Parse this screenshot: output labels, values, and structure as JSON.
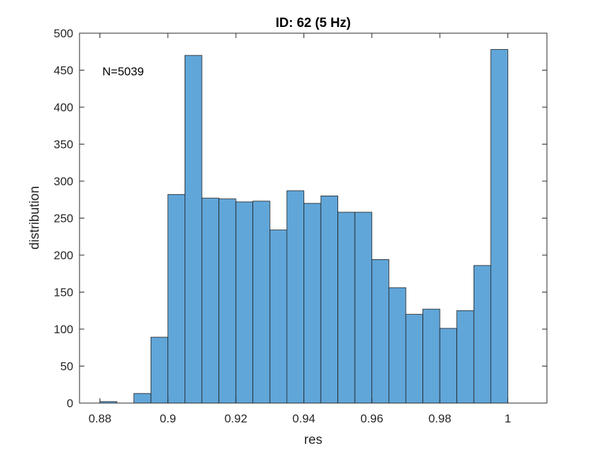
{
  "chart_data": {
    "type": "bar",
    "title": "ID: 62 (5 Hz)",
    "xlabel": "res",
    "ylabel": "distribution",
    "annotation": "N=5039",
    "xlim": [
      0.874,
      1.0115
    ],
    "ylim": [
      0,
      500
    ],
    "xticks": [
      0.88,
      0.9,
      0.92,
      0.94,
      0.96,
      0.98,
      1
    ],
    "xtick_labels": [
      "0.88",
      "0.9",
      "0.92",
      "0.94",
      "0.96",
      "0.98",
      "1"
    ],
    "yticks": [
      0,
      50,
      100,
      150,
      200,
      250,
      300,
      350,
      400,
      450,
      500
    ],
    "ytick_labels": [
      "0",
      "50",
      "100",
      "150",
      "200",
      "250",
      "300",
      "350",
      "400",
      "450",
      "500"
    ],
    "bin_width": 0.005,
    "bins": [
      {
        "x0": 0.88,
        "x1": 0.885,
        "value": 2
      },
      {
        "x0": 0.885,
        "x1": 0.89,
        "value": 0
      },
      {
        "x0": 0.89,
        "x1": 0.895,
        "value": 13
      },
      {
        "x0": 0.895,
        "x1": 0.9,
        "value": 89
      },
      {
        "x0": 0.9,
        "x1": 0.905,
        "value": 282
      },
      {
        "x0": 0.905,
        "x1": 0.91,
        "value": 470
      },
      {
        "x0": 0.91,
        "x1": 0.915,
        "value": 277
      },
      {
        "x0": 0.915,
        "x1": 0.92,
        "value": 276
      },
      {
        "x0": 0.92,
        "x1": 0.925,
        "value": 272
      },
      {
        "x0": 0.925,
        "x1": 0.93,
        "value": 273
      },
      {
        "x0": 0.93,
        "x1": 0.935,
        "value": 234
      },
      {
        "x0": 0.935,
        "x1": 0.94,
        "value": 287
      },
      {
        "x0": 0.94,
        "x1": 0.945,
        "value": 270
      },
      {
        "x0": 0.945,
        "x1": 0.95,
        "value": 280
      },
      {
        "x0": 0.95,
        "x1": 0.955,
        "value": 258
      },
      {
        "x0": 0.955,
        "x1": 0.96,
        "value": 258
      },
      {
        "x0": 0.96,
        "x1": 0.965,
        "value": 194
      },
      {
        "x0": 0.965,
        "x1": 0.97,
        "value": 156
      },
      {
        "x0": 0.97,
        "x1": 0.975,
        "value": 120
      },
      {
        "x0": 0.975,
        "x1": 0.98,
        "value": 127
      },
      {
        "x0": 0.98,
        "x1": 0.985,
        "value": 101
      },
      {
        "x0": 0.985,
        "x1": 0.99,
        "value": 125
      },
      {
        "x0": 0.99,
        "x1": 0.995,
        "value": 186
      },
      {
        "x0": 0.995,
        "x1": 1.0,
        "value": 478
      }
    ],
    "bar_color": "#61a6d9",
    "bar_edge_color": "#1a1a1a",
    "axis_color": "#262626",
    "grid": false,
    "box": true
  }
}
